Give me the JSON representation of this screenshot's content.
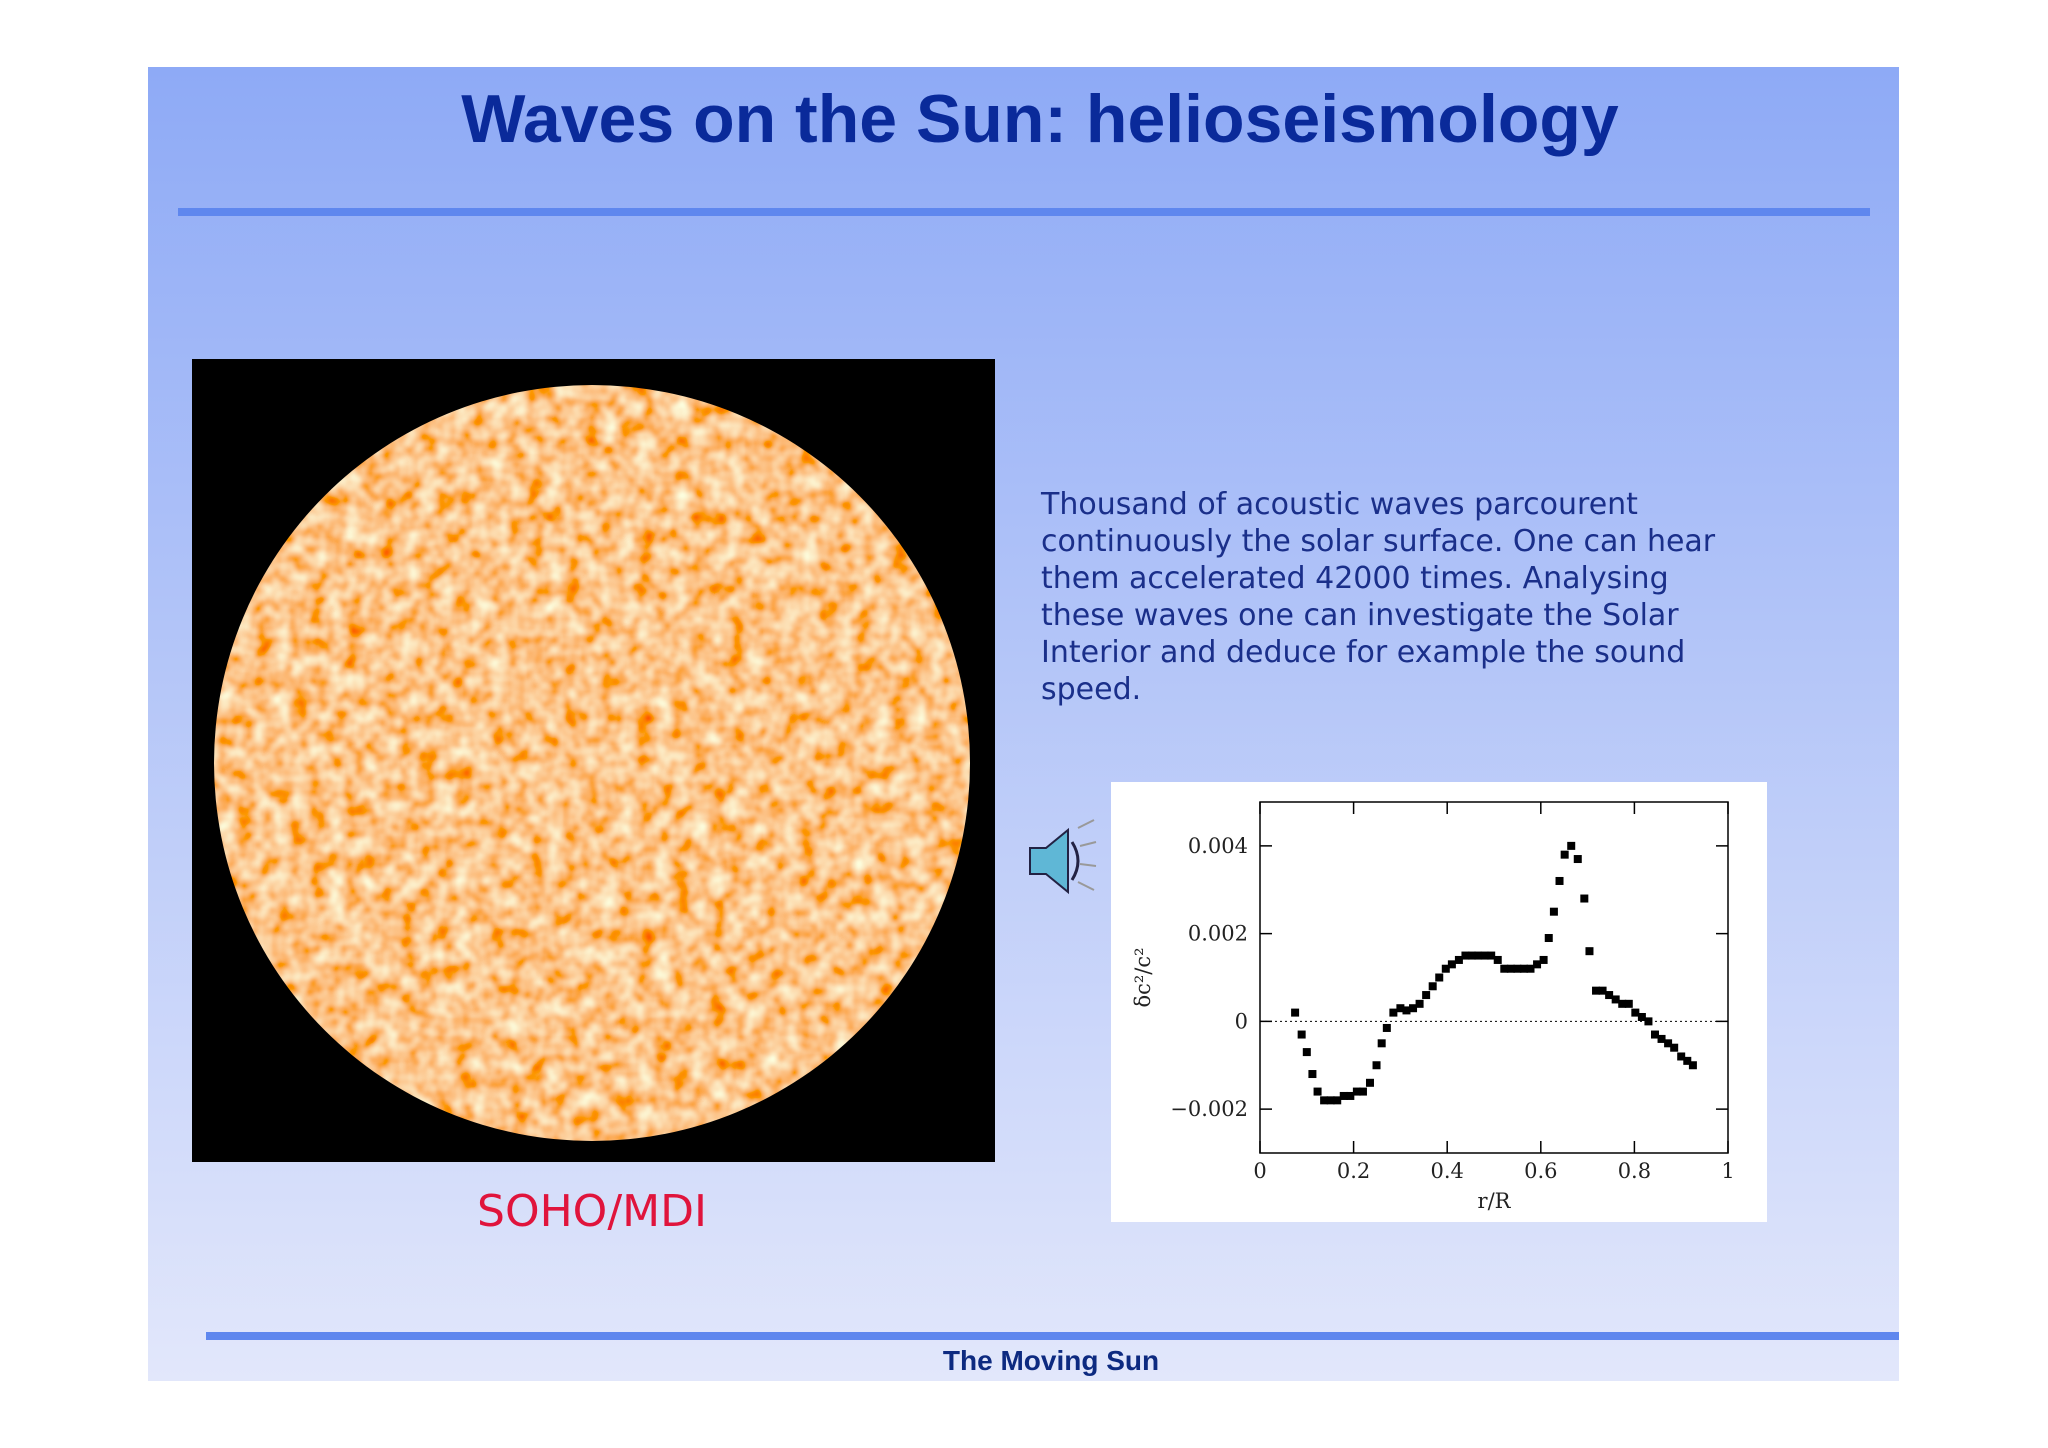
{
  "header": {
    "title": "Waves on the Sun: helioseismology"
  },
  "body": {
    "text_lines": [
      "Thousand of acoustic waves parcourent",
      "continuously the solar surface. One can hear",
      "them accelerated 42000 times. Analysing",
      "these waves one can investigate the Solar",
      "Interior and deduce for example the sound",
      "speed."
    ]
  },
  "image": {
    "caption": "SOHO/MDI"
  },
  "chart": {
    "type": "scatter",
    "x_label": "r/R",
    "y_label": "δc²/c²",
    "color": "#000000",
    "x": [
      0.075,
      0.089,
      0.1,
      0.112,
      0.123,
      0.137,
      0.151,
      0.165,
      0.179,
      0.193,
      0.207,
      0.22,
      0.235,
      0.249,
      0.26,
      0.271,
      0.285,
      0.3,
      0.313,
      0.327,
      0.341,
      0.355,
      0.369,
      0.383,
      0.397,
      0.41,
      0.425,
      0.439,
      0.453,
      0.466,
      0.48,
      0.494,
      0.508,
      0.522,
      0.536,
      0.55,
      0.564,
      0.578,
      0.592,
      0.606,
      0.617,
      0.628,
      0.64,
      0.651,
      0.665,
      0.679,
      0.693,
      0.704,
      0.718,
      0.732,
      0.746,
      0.76,
      0.774,
      0.788,
      0.802,
      0.816,
      0.83,
      0.844,
      0.858,
      0.872,
      0.885,
      0.9,
      0.913,
      0.925
    ],
    "values": [
      0.0002,
      -0.0003,
      -0.0007,
      -0.0012,
      -0.0016,
      -0.0018,
      -0.0018,
      -0.0018,
      -0.0017,
      -0.0017,
      -0.0016,
      -0.0016,
      -0.0014,
      -0.001,
      -0.0005,
      -0.00015,
      0.0002,
      0.0003,
      0.00025,
      0.0003,
      0.0004,
      0.0006,
      0.0008,
      0.001,
      0.0012,
      0.0013,
      0.0014,
      0.0015,
      0.0015,
      0.0015,
      0.0015,
      0.0015,
      0.0014,
      0.0012,
      0.0012,
      0.0012,
      0.0012,
      0.0012,
      0.0013,
      0.0014,
      0.0019,
      0.0025,
      0.0032,
      0.0038,
      0.004,
      0.0037,
      0.0028,
      0.0016,
      0.0007,
      0.0007,
      0.0006,
      0.0005,
      0.0004,
      0.0004,
      0.0002,
      0.0001,
      0.0,
      -0.0003,
      -0.0004,
      -0.0005,
      -0.0006,
      -0.0008,
      -0.0009,
      -0.001
    ],
    "xlim": [
      0,
      1
    ],
    "ylim": [
      -0.003,
      0.005
    ],
    "xticks": [
      0,
      0.2,
      0.4,
      0.6,
      0.8,
      1
    ],
    "yticks": [
      {
        "value": -0.002,
        "label": "−0.002"
      },
      0,
      0.002,
      0.004
    ]
  },
  "footer": {
    "text": "The Moving Sun"
  }
}
